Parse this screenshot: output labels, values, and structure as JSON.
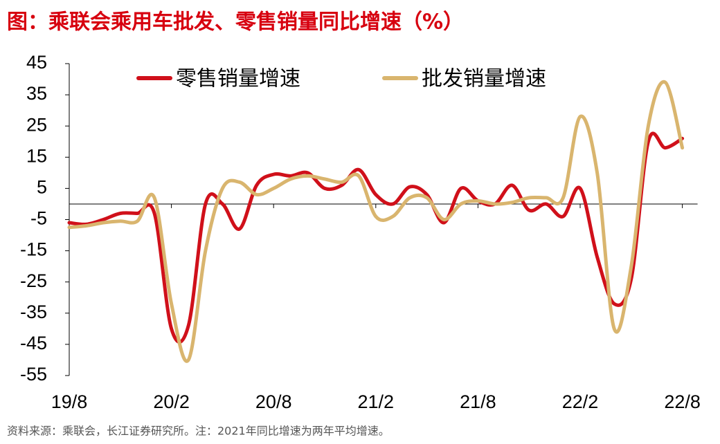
{
  "chart_data": {
    "type": "line",
    "title": "图：乘联会乘用车批发、零售销量同比增速（%）",
    "source": "资料来源：乘联会，长江证券研究所。注：2021年同比增速为两年平均增速。",
    "categories": [
      "19/8",
      null,
      null,
      null,
      null,
      null,
      "20/2",
      null,
      null,
      null,
      null,
      null,
      "20/8",
      null,
      null,
      null,
      null,
      null,
      "21/2",
      null,
      null,
      null,
      null,
      null,
      "21/8",
      null,
      null,
      null,
      null,
      null,
      "22/2",
      null,
      null,
      null,
      null,
      null,
      "22/8"
    ],
    "series": [
      {
        "name": "零售销量增速",
        "color": "#d0101a",
        "values": [
          -6,
          -6.5,
          -5,
          -3,
          -3,
          -3,
          -40,
          -39,
          0,
          0,
          -8,
          6,
          9.5,
          9,
          10,
          5,
          6,
          11,
          3,
          0,
          5.5,
          3,
          -6,
          5,
          1,
          0,
          6,
          -2,
          0,
          -4,
          5,
          -17,
          -32,
          -24,
          20,
          18,
          21
        ]
      },
      {
        "name": "批发销量增速",
        "color": "#d9b56e",
        "values": [
          -7.5,
          -7,
          -6,
          -5.5,
          -5.5,
          2,
          -32,
          -50,
          -15,
          5,
          7,
          3,
          5,
          8,
          9,
          8,
          7,
          9,
          -4,
          -4,
          2,
          2,
          -5,
          0,
          1,
          0,
          0.5,
          2,
          2,
          2,
          28,
          10,
          -40,
          -20,
          25,
          39,
          18
        ]
      }
    ],
    "ylim": [
      -55,
      45
    ],
    "yticks": [
      45,
      35,
      25,
      15,
      5,
      -5,
      -15,
      -25,
      -35,
      -45,
      -55
    ],
    "legend": "top",
    "grid": false
  }
}
